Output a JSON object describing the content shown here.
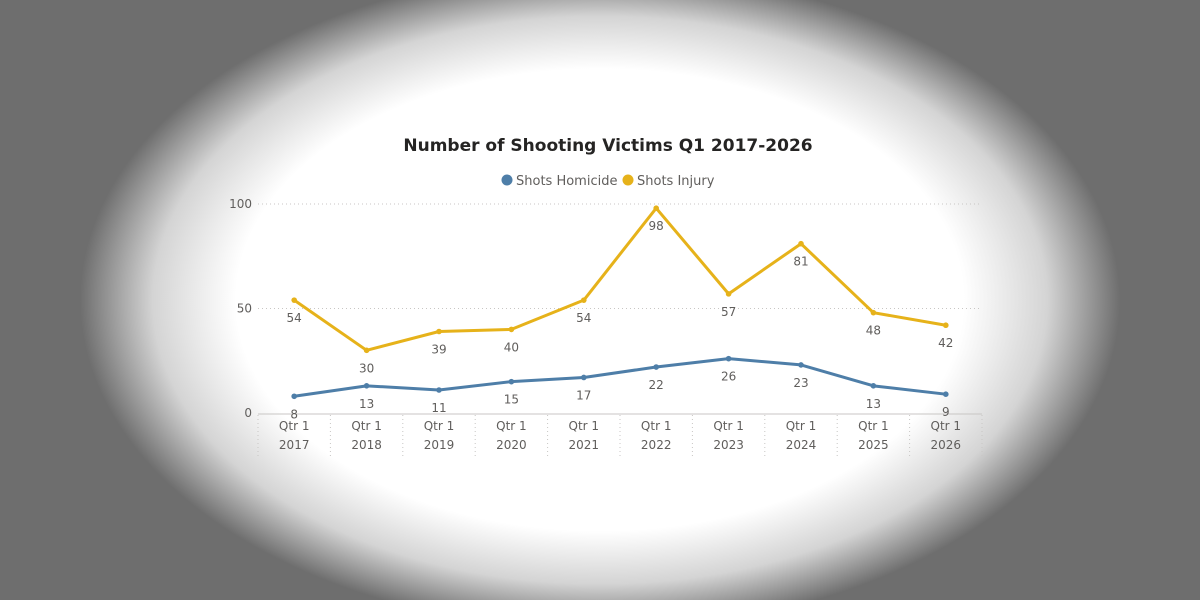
{
  "chart_data": {
    "type": "line",
    "title": "Number of Shooting Victims Q1 2017-2026",
    "categories": [
      {
        "quarter": "Qtr 1",
        "year": "2017"
      },
      {
        "quarter": "Qtr 1",
        "year": "2018"
      },
      {
        "quarter": "Qtr 1",
        "year": "2019"
      },
      {
        "quarter": "Qtr 1",
        "year": "2020"
      },
      {
        "quarter": "Qtr 1",
        "year": "2021"
      },
      {
        "quarter": "Qtr 1",
        "year": "2022"
      },
      {
        "quarter": "Qtr 1",
        "year": "2023"
      },
      {
        "quarter": "Qtr 1",
        "year": "2024"
      },
      {
        "quarter": "Qtr 1",
        "year": "2025"
      },
      {
        "quarter": "Qtr 1",
        "year": "2026"
      }
    ],
    "series": [
      {
        "name": "Shots Homicide",
        "color": "#4e7ea8",
        "values": [
          8,
          13,
          11,
          15,
          17,
          22,
          26,
          23,
          13,
          9
        ]
      },
      {
        "name": "Shots Injury",
        "color": "#e6b21a",
        "values": [
          54,
          30,
          39,
          40,
          54,
          98,
          57,
          81,
          48,
          42
        ]
      }
    ],
    "ylim": [
      0,
      100
    ],
    "yticks": [
      0,
      50,
      100
    ],
    "grid": true,
    "legend_position": "top-center",
    "xlabel": "",
    "ylabel": ""
  }
}
